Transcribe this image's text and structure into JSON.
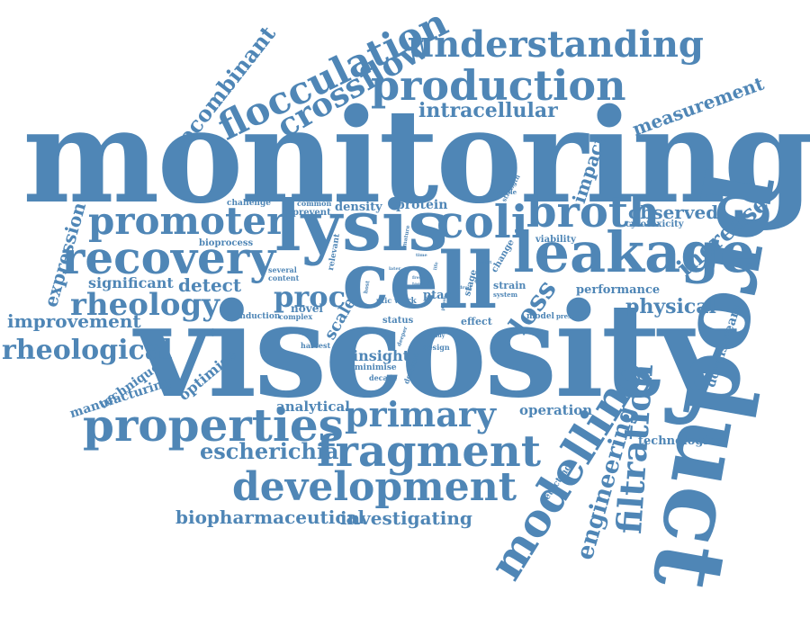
{
  "colors": {
    "word": "#4f86b6",
    "background": "#ffffff"
  },
  "words": {
    "monitoring": "monitoring",
    "viscosity": "viscosity",
    "product": "product",
    "lysis": "lysis",
    "cell": "cell",
    "leakage": "leakage",
    "coli": "coli",
    "broth": "broth",
    "recovery": "recovery",
    "promoter": "promoter",
    "production": "production",
    "understanding": "understanding",
    "flocculation": "flocculation",
    "crossflow": "crossflow",
    "properties": "properties",
    "fragment": "fragment",
    "development": "development",
    "primary": "primary",
    "modelling": "modelling",
    "filtration": "filtration",
    "rheology": "rheology",
    "rheological": "rheological",
    "proc": "proc",
    "loss": "loss",
    "recombinant": "recombinant",
    "measurement": "measurement",
    "intracellular": "intracellular",
    "engineering": "engineering",
    "escherichia": "escherichia",
    "biopharmaceutical": "biopharmaceutical",
    "investigating": "investigating",
    "improvement": "improvement",
    "expression": "expression",
    "detect": "detect",
    "significant": "significant",
    "physical": "physical",
    "observed": "observed",
    "increase": "increase",
    "impact": "impact",
    "technologies": "technologies",
    "downstream": "downstream",
    "performance": "performance",
    "operation": "operation",
    "analytical": "analytical",
    "manufacturing": "manufacturing",
    "technique": "technique",
    "optimise": "optimise",
    "insight": "insight",
    "scale": "scale",
    "novel": "novel",
    "work": "work",
    "ptac": "ptac",
    "density": "density",
    "protein": "protein",
    "challenge": "challenge",
    "common": "common",
    "prevent": "prevent",
    "bioprocess": "bioprocess",
    "several": "several",
    "content": "content",
    "induction": "induction",
    "complex": "complex",
    "harvest": "harvest",
    "status": "status",
    "minimise": "minimise",
    "decade": "decade",
    "design": "design",
    "effect": "effect",
    "strain": "strain",
    "system": "system",
    "model": "model",
    "present": "present",
    "viability": "viability",
    "cytotoxicity": "cytotoxicity",
    "change": "change",
    "stage": "stage",
    "relevant": "relevant",
    "detecting": "detecting",
    "enable": "enable",
    "strength": "strength",
    "demand": "demand",
    "study": "study",
    "deeper": "deeper",
    "ptic": "ptic",
    "mature": "mature",
    "host": "host",
    "time": "time",
    "rapid": "rapid",
    "result": "result",
    "direct": "direct",
    "drug": "drug",
    "life": "life",
    "later": "later",
    "fresh": "fresh",
    "tool": "tool",
    "phase": "phase"
  }
}
